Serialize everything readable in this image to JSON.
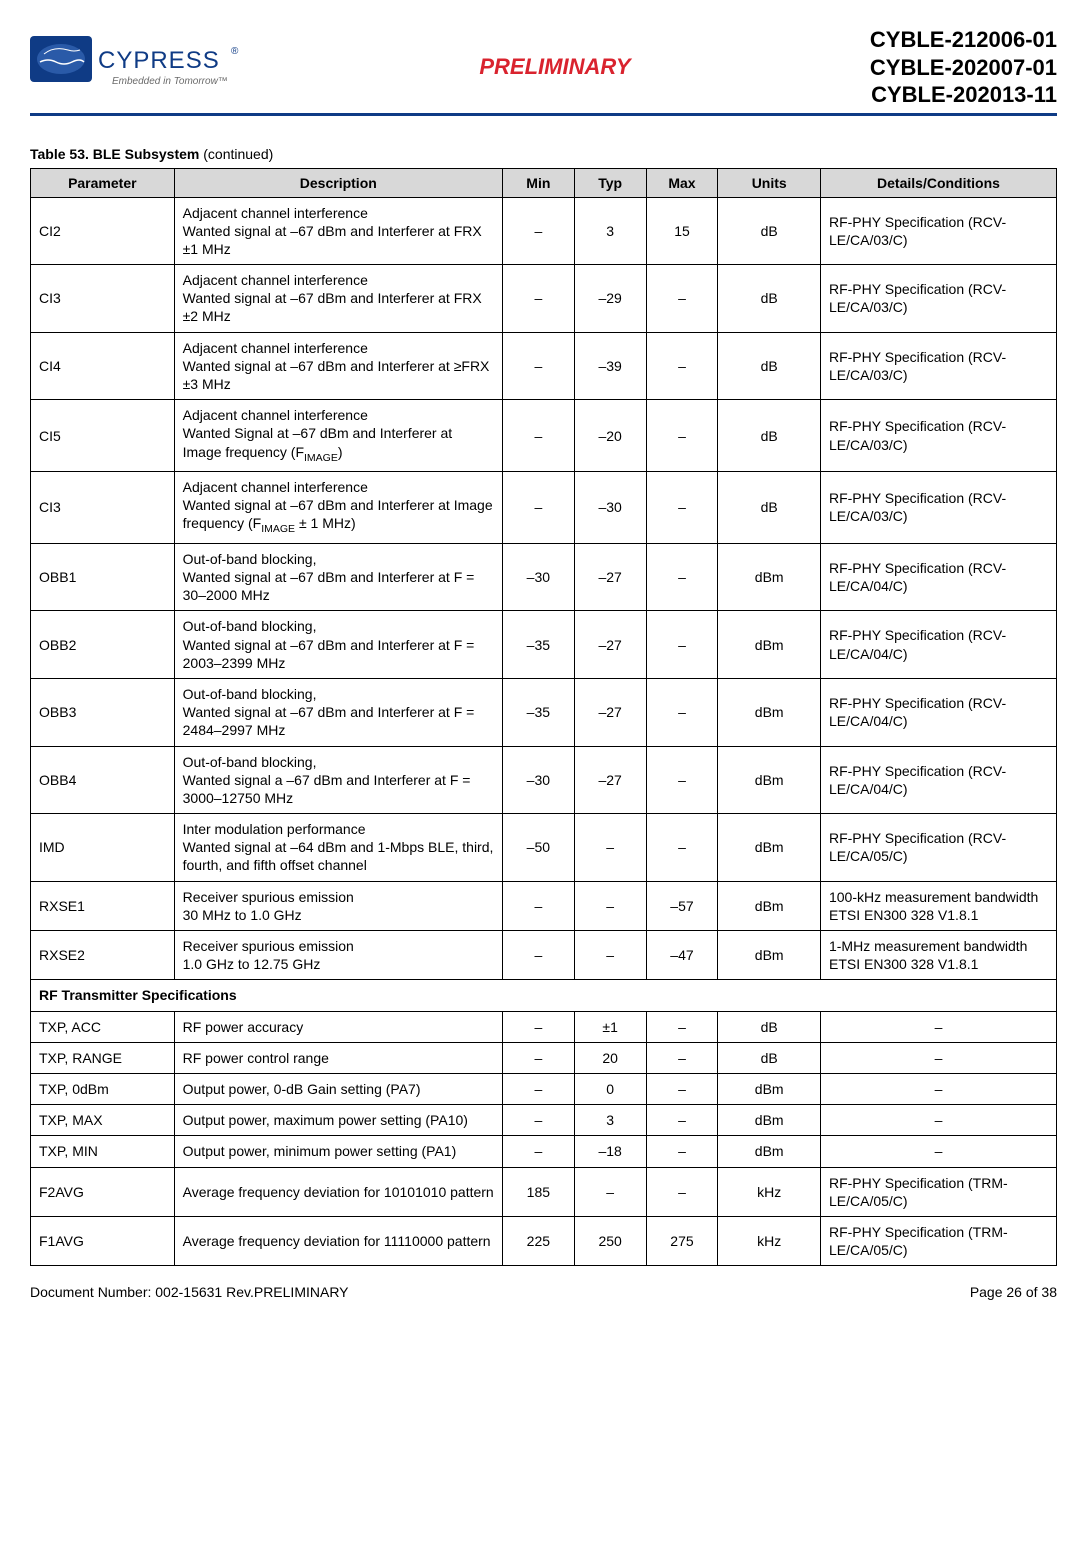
{
  "header": {
    "preliminary": "PRELIMINARY",
    "parts": [
      "CYBLE-212006-01",
      "CYBLE-202007-01",
      "CYBLE-202013-11"
    ],
    "logo_brand": "CYPRESS",
    "logo_tagline": "Embedded in Tomorrow™"
  },
  "table": {
    "caption_prefix": "Table 53.  BLE Subsystem ",
    "caption_suffix": "(continued)",
    "col_headers": [
      "Parameter",
      "Description",
      "Min",
      "Typ",
      "Max",
      "Units",
      "Details/Conditions"
    ]
  },
  "rows": [
    {
      "p": "CI2",
      "d": "Adjacent channel interference\nWanted signal at –67 dBm and Interferer at FRX ±1 MHz",
      "min": "–",
      "typ": "3",
      "max": "15",
      "u": "dB",
      "dc": "RF-PHY Specification (RCV-LE/CA/03/C)"
    },
    {
      "p": "CI3",
      "d": "Adjacent channel interference\nWanted signal at –67 dBm and Interferer at FRX ±2 MHz",
      "min": "–",
      "typ": "–29",
      "max": "–",
      "u": "dB",
      "dc": "RF-PHY Specification (RCV-LE/CA/03/C)"
    },
    {
      "p": "CI4",
      "d": "Adjacent channel interference\nWanted signal at –67 dBm and Interferer at ≥FRX ±3 MHz",
      "min": "–",
      "typ": "–39",
      "max": "–",
      "u": "dB",
      "dc": "RF-PHY Specification (RCV-LE/CA/03/C)"
    },
    {
      "p": "CI5",
      "d_html": "Adjacent channel interference<br>Wanted Signal at –67 dBm and Interferer at Image frequency (F<span class=\"sub\">IMAGE</span>)",
      "min": "–",
      "typ": "–20",
      "max": "–",
      "u": "dB",
      "dc": "RF-PHY Specification (RCV-LE/CA/03/C)"
    },
    {
      "p": "CI3",
      "d_html": "Adjacent channel interference<br>Wanted signal at –67 dBm and Interferer at Image frequency (F<span class=\"sub\">IMAGE</span> ± 1 MHz)",
      "min": "–",
      "typ": "–30",
      "max": "–",
      "u": "dB",
      "dc": "RF-PHY Specification (RCV-LE/CA/03/C)"
    },
    {
      "p": "OBB1",
      "d": "Out-of-band blocking,\nWanted signal at –67 dBm and Interferer at F = 30–2000 MHz",
      "min": "–30",
      "typ": "–27",
      "max": "–",
      "u": "dBm",
      "dc": "RF-PHY Specification (RCV-LE/CA/04/C)"
    },
    {
      "p": "OBB2",
      "d": "Out-of-band blocking,\nWanted signal at –67 dBm and Interferer at F = 2003–2399 MHz",
      "min": "–35",
      "typ": "–27",
      "max": "–",
      "u": "dBm",
      "dc": "RF-PHY Specification (RCV-LE/CA/04/C)"
    },
    {
      "p": "OBB3",
      "d": "Out-of-band blocking,\nWanted signal at –67 dBm and Interferer at F = 2484–2997 MHz",
      "min": "–35",
      "typ": "–27",
      "max": "–",
      "u": "dBm",
      "dc": "RF-PHY Specification (RCV-LE/CA/04/C)"
    },
    {
      "p": "OBB4",
      "d": "Out-of-band blocking,\nWanted signal a –67 dBm and Interferer at F = 3000–12750 MHz",
      "min": "–30",
      "typ": "–27",
      "max": "–",
      "u": "dBm",
      "dc": "RF-PHY Specification (RCV-LE/CA/04/C)"
    },
    {
      "p": "IMD",
      "d": "Inter modulation performance\nWanted signal at –64 dBm and 1-Mbps BLE, third, fourth, and fifth offset channel",
      "min": "–50",
      "typ": "–",
      "max": "–",
      "u": "dBm",
      "dc": "RF-PHY Specification (RCV-LE/CA/05/C)"
    },
    {
      "p": "RXSE1",
      "d": "Receiver spurious emission\n30 MHz to 1.0 GHz",
      "min": "–",
      "typ": "–",
      "max": "–57",
      "u": "dBm",
      "dc": "100-kHz measurement bandwidth\nETSI EN300 328 V1.8.1"
    },
    {
      "p": "RXSE2",
      "d": "Receiver spurious emission\n1.0 GHz to 12.75 GHz",
      "min": "–",
      "typ": "–",
      "max": "–47",
      "u": "dBm",
      "dc": "1-MHz measurement bandwidth\nETSI EN300 328 V1.8.1"
    },
    {
      "section": "RF Transmitter Specifications"
    },
    {
      "p": "TXP, ACC",
      "d": "RF power accuracy",
      "min": "–",
      "typ": "±1",
      "max": "–",
      "u": "dB",
      "dc": "–",
      "dc_center": true
    },
    {
      "p": "TXP, RANGE",
      "d": "RF power control range",
      "min": "–",
      "typ": "20",
      "max": "–",
      "u": "dB",
      "dc": "–",
      "dc_center": true
    },
    {
      "p": "TXP, 0dBm",
      "d": "Output power, 0-dB Gain setting (PA7)",
      "min": "–",
      "typ": "0",
      "max": "–",
      "u": "dBm",
      "dc": "–",
      "dc_center": true
    },
    {
      "p": "TXP, MAX",
      "d": "Output power, maximum power setting (PA10)",
      "min": "–",
      "typ": "3",
      "max": "–",
      "u": "dBm",
      "dc": "–",
      "dc_center": true
    },
    {
      "p": "TXP, MIN",
      "d": "Output power, minimum power setting (PA1)",
      "min": "–",
      "typ": "–18",
      "max": "–",
      "u": "dBm",
      "dc": "–",
      "dc_center": true
    },
    {
      "p": "F2AVG",
      "d": "Average frequency deviation for 10101010 pattern",
      "min": "185",
      "typ": "–",
      "max": "–",
      "u": "kHz",
      "dc": "RF-PHY Specification (TRM-LE/CA/05/C)"
    },
    {
      "p": "F1AVG",
      "d": "Average frequency deviation for 11110000 pattern",
      "min": "225",
      "typ": "250",
      "max": "275",
      "u": "kHz",
      "dc": "RF-PHY Specification (TRM-LE/CA/05/C)"
    }
  ],
  "footer": {
    "doc": "Document Number: 002-15631 Rev.PRELIMINARY",
    "page": "Page 26 of 38"
  }
}
